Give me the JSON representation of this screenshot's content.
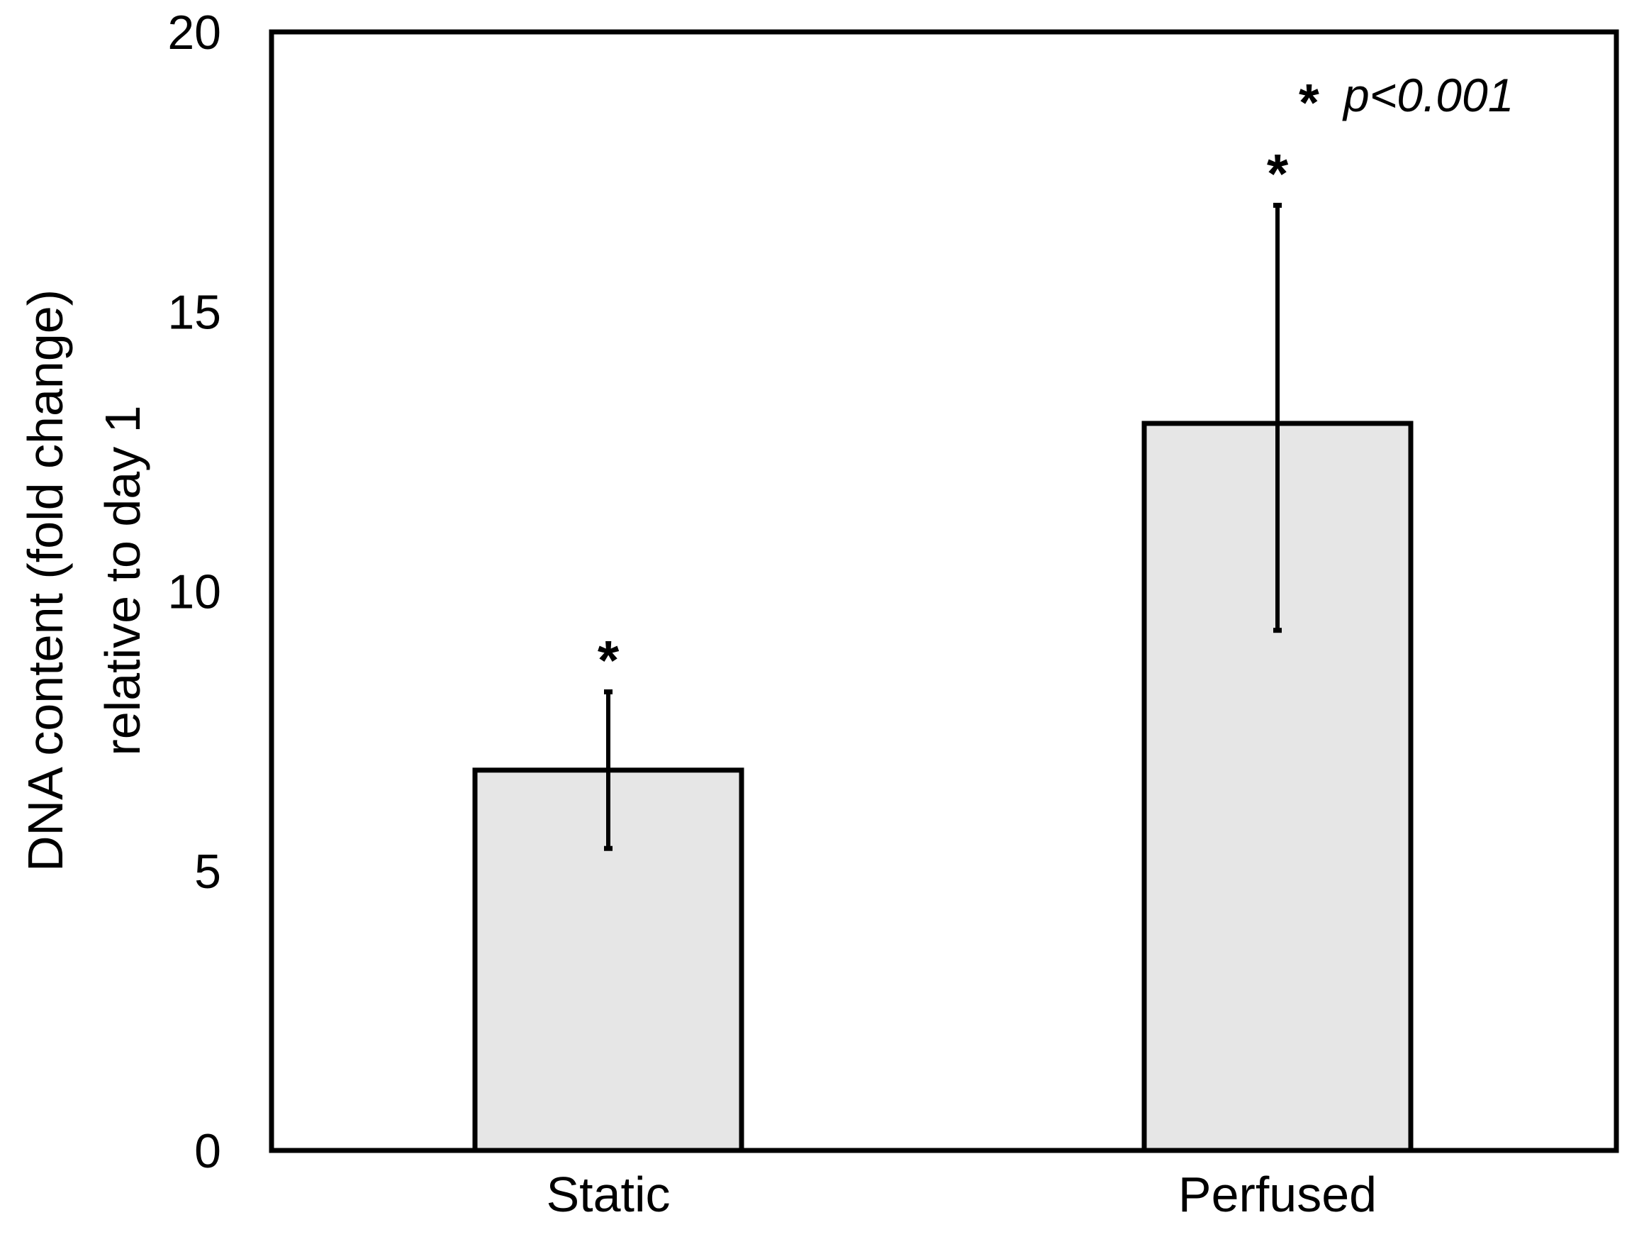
{
  "chart_data": {
    "type": "bar",
    "title": "",
    "xlabel": "",
    "ylabel_line1": "DNA content  (fold change)",
    "ylabel_line2": "relative to day 1",
    "categories": [
      "Static",
      "Perfused"
    ],
    "values": [
      6.8,
      13.0
    ],
    "error_upper": [
      8.2,
      16.9
    ],
    "error_lower": [
      5.4,
      9.3
    ],
    "significance_markers": [
      "*",
      "*"
    ],
    "ylim": [
      0,
      20
    ],
    "yticks": [
      "0",
      "5",
      "10",
      "15",
      "20"
    ],
    "ytick_values": [
      0,
      5,
      10,
      15,
      20
    ],
    "grid": false,
    "bar_color": "#e6e6e6",
    "edge_color": "#000000",
    "annotation": {
      "star": "*",
      "text": "p<0.001"
    }
  }
}
